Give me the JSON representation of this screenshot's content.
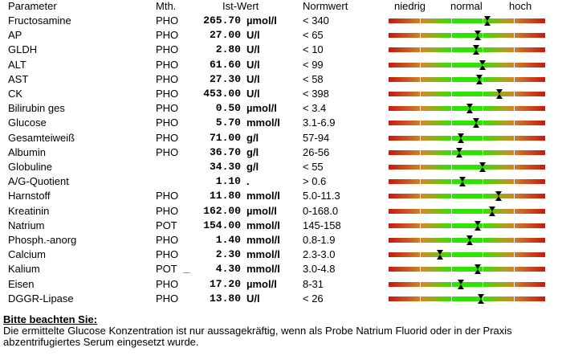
{
  "header": {
    "parameter": "Parameter",
    "method": "Mth.",
    "value": "Ist-Wert",
    "norm": "Normwert",
    "low": "niedrig",
    "normal": "normal",
    "high": "hoch"
  },
  "rows": [
    {
      "param": "Fructosamine",
      "mth": "PHO",
      "value": "265.70",
      "unit": "µmol/l",
      "norm": "< 340",
      "level": 0.63
    },
    {
      "param": "AP",
      "mth": "PHO",
      "value": "27.00",
      "unit": "U/l",
      "norm": "< 65",
      "level": 0.57
    },
    {
      "param": "GLDH",
      "mth": "PHO",
      "value": "2.80",
      "unit": "U/l",
      "norm": "< 10",
      "level": 0.56
    },
    {
      "param": "ALT",
      "mth": "PHO",
      "value": "61.60",
      "unit": "U/l",
      "norm": "< 99",
      "level": 0.6
    },
    {
      "param": "AST",
      "mth": "PHO",
      "value": "27.30",
      "unit": "U/l",
      "norm": "< 58",
      "level": 0.58
    },
    {
      "param": "CK",
      "mth": "PHO",
      "value": "453.00",
      "unit": "U/l",
      "norm": "< 398",
      "level": 0.71
    },
    {
      "param": "Bilirubin ges",
      "mth": "PHO",
      "value": "0.50",
      "unit": "µmol/l",
      "norm": "< 3.4",
      "level": 0.52
    },
    {
      "param": "Glucose",
      "mth": "PHO",
      "value": "5.70",
      "unit": "mmol/l",
      "norm": "3.1-6.9",
      "level": 0.56
    },
    {
      "param": "Gesamteiweiß",
      "mth": "PHO",
      "value": "71.00",
      "unit": "g/l",
      "norm": "57-94",
      "level": 0.46
    },
    {
      "param": "Albumin",
      "mth": "PHO",
      "value": "36.70",
      "unit": "g/l",
      "norm": "26-56",
      "level": 0.45
    },
    {
      "param": "Globuline",
      "mth": "",
      "value": "34.30",
      "unit": "g/l",
      "norm": "< 55",
      "level": 0.6
    },
    {
      "param": "A/G-Quotient",
      "mth": "",
      "value": "1.10",
      "unit": ".",
      "norm": "> 0.6",
      "level": 0.47
    },
    {
      "param": "Harnstoff",
      "mth": "PHO",
      "value": "11.80",
      "unit": "mmol/l",
      "norm": "5.0-11.3",
      "level": 0.7
    },
    {
      "param": "Kreatinin",
      "mth": "PHO",
      "value": "162.00",
      "unit": "µmol/l",
      "norm": "0-168.0",
      "level": 0.66
    },
    {
      "param": "Natrium",
      "mth": "POT",
      "value": "154.00",
      "unit": "mmol/l",
      "norm": "145-158",
      "level": 0.57
    },
    {
      "param": "Phosph.-anorg",
      "mth": "PHO",
      "value": "1.40",
      "unit": "mmol/l",
      "norm": "0.8-1.9",
      "level": 0.52
    },
    {
      "param": "Calcium",
      "mth": "PHO",
      "value": "2.30",
      "unit": "mmol/l",
      "norm": "2.3-3.0",
      "level": 0.33
    },
    {
      "param": "Kalium",
      "mth": "POT",
      "value": "4.30",
      "unit": "mmol/l",
      "norm": "3.0-4.8",
      "level": 0.57
    },
    {
      "param": "Eisen",
      "mth": "PHO",
      "value": "17.20",
      "unit": "µmol/l",
      "norm": "8-31",
      "level": 0.46
    },
    {
      "param": "DGGR-Lipase",
      "mth": "PHO",
      "value": "13.80",
      "unit": "U/l",
      "norm": "< 26",
      "level": 0.59
    }
  ],
  "footer": {
    "title": "Bitte beachten Sie:",
    "text": "Die ermittelte Glucose Konzentration ist nur aussagekräftig, wenn als Probe Natrium Fluorid oder in der Praxis abzentrifugiertes Serum eingesetzt wurde."
  },
  "colors": {
    "low_high": "#c41a12",
    "normal": "#2fe300",
    "marker": "#000000"
  }
}
